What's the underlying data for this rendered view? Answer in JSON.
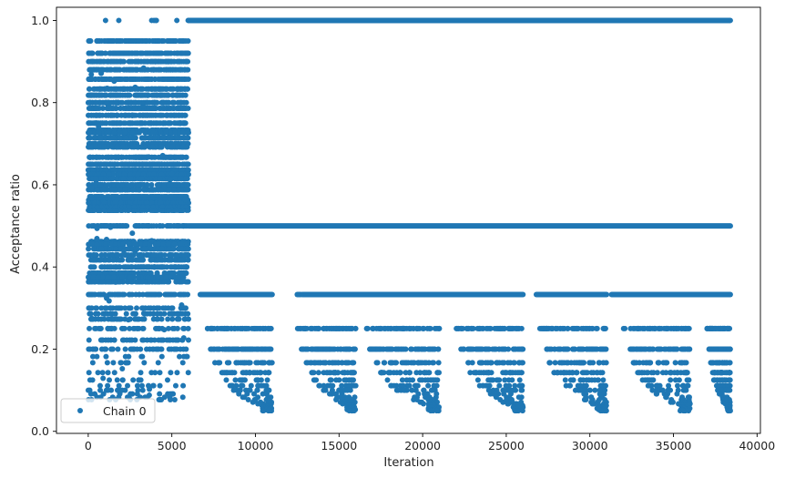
{
  "chart_data": {
    "type": "scatter",
    "title": "",
    "xlabel": "Iteration",
    "ylabel": "Acceptance ratio",
    "xlim": [
      -1900,
      40200
    ],
    "ylim": [
      -0.005,
      1.032
    ],
    "xticks": [
      0,
      5000,
      10000,
      15000,
      20000,
      25000,
      30000,
      35000,
      40000
    ],
    "yticks": [
      0.0,
      0.2,
      0.4,
      0.6,
      0.8,
      1.0
    ],
    "grid": false,
    "legend": {
      "position": "lower-left",
      "entries": [
        "Chain 0"
      ]
    },
    "series": [
      {
        "name": "Chain 0",
        "color": "#1f77b4",
        "marker": "circle",
        "phase1": {
          "x_range": [
            0,
            6000
          ],
          "levels": [
            1.0,
            0.95,
            0.92,
            0.9,
            0.88,
            0.857,
            0.833,
            0.818,
            0.8,
            0.786,
            0.769,
            0.75,
            0.733,
            0.727,
            0.714,
            0.7,
            0.692,
            0.667,
            0.65,
            0.636,
            0.625,
            0.615,
            0.6,
            0.588,
            0.571,
            0.563,
            0.556,
            0.545,
            0.538,
            0.5,
            0.462,
            0.455,
            0.444,
            0.429,
            0.417,
            0.4,
            0.385,
            0.375,
            0.364,
            0.333,
            0.3,
            0.286,
            0.273,
            0.25,
            0.222,
            0.2,
            0.182,
            0.167,
            0.143,
            0.125,
            0.111,
            0.1,
            0.091,
            0.083,
            0.077
          ]
        },
        "phase2": {
          "x_range": [
            6000,
            38400
          ],
          "constant_levels": [
            1.0,
            0.5
          ],
          "level_0_333": [
            [
              6700,
              11000
            ],
            [
              12500,
              12700
            ],
            [
              12800,
              26000
            ],
            [
              26800,
              31000
            ],
            [
              31300,
              38400
            ]
          ],
          "cycles": [
            {
              "x_range": [
                7000,
                11000
              ]
            },
            {
              "x_range": [
                12500,
                16000
              ]
            },
            {
              "x_range": [
                16500,
                21000
              ]
            },
            {
              "x_range": [
                22000,
                26000
              ]
            },
            {
              "x_range": [
                27000,
                31000
              ]
            },
            {
              "x_range": [
                32000,
                36000
              ]
            },
            {
              "x_range": [
                37000,
                38400
              ]
            }
          ]
        }
      }
    ]
  }
}
